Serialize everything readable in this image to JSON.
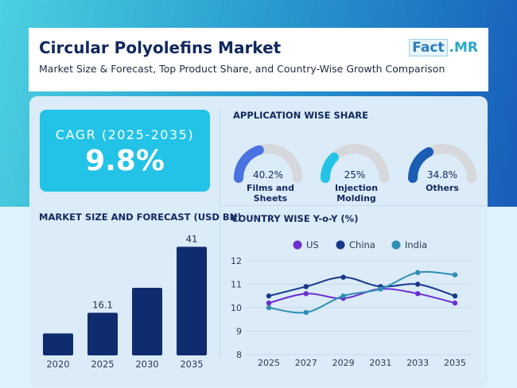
{
  "header": {
    "title": "Circular Polyolefins Market",
    "subtitle": "Market Size & Forecast, Top Product Share, and Country-Wise Growth Comparison",
    "logo_left": "Fact",
    "logo_right": ".MR"
  },
  "cagr": {
    "label": "CAGR (2025-2035)",
    "value": "9.8%"
  },
  "colors": {
    "bar": "#0f2d6e",
    "us": "#6a2fd1",
    "china": "#17388a",
    "india": "#2f8fb5",
    "donut_bg": "#d6d8dc",
    "films": "#4a72e0",
    "injection": "#22c3e6",
    "others": "#1a5db3"
  },
  "application_share": {
    "title": "APPLICATION WISE SHARE",
    "items": [
      {
        "label": "Films and Sheets",
        "value": "40.2%",
        "share": 40.2
      },
      {
        "label": "Injection Molding",
        "value": "25%",
        "share": 25
      },
      {
        "label": "Others",
        "value": "34.8%",
        "share": 34.8
      }
    ]
  },
  "chart_data": [
    {
      "type": "bar",
      "title": "MARKET SIZE AND FORECAST (USD BN)",
      "categories": [
        "2020",
        "2025",
        "2030",
        "2035"
      ],
      "values": [
        8.3,
        16.1,
        25.5,
        41
      ],
      "data_labels": [
        "",
        "16.1",
        "",
        "41"
      ],
      "ylim": [
        0,
        45
      ]
    },
    {
      "type": "line",
      "title": "COUNTRY WISE Y-o-Y (%)",
      "x": [
        "2025",
        "2027",
        "2029",
        "2031",
        "2033",
        "2035"
      ],
      "yticks": [
        "8",
        "9",
        "10",
        "11",
        "12"
      ],
      "ylim": [
        8,
        12
      ],
      "legend": "top",
      "series": [
        {
          "name": "US",
          "values": [
            10.2,
            10.6,
            10.4,
            10.8,
            10.6,
            10.2
          ]
        },
        {
          "name": "China",
          "values": [
            10.5,
            10.9,
            11.3,
            10.9,
            11.0,
            10.5
          ]
        },
        {
          "name": "India",
          "values": [
            10.0,
            9.8,
            10.5,
            10.8,
            11.5,
            11.4
          ]
        }
      ]
    }
  ]
}
